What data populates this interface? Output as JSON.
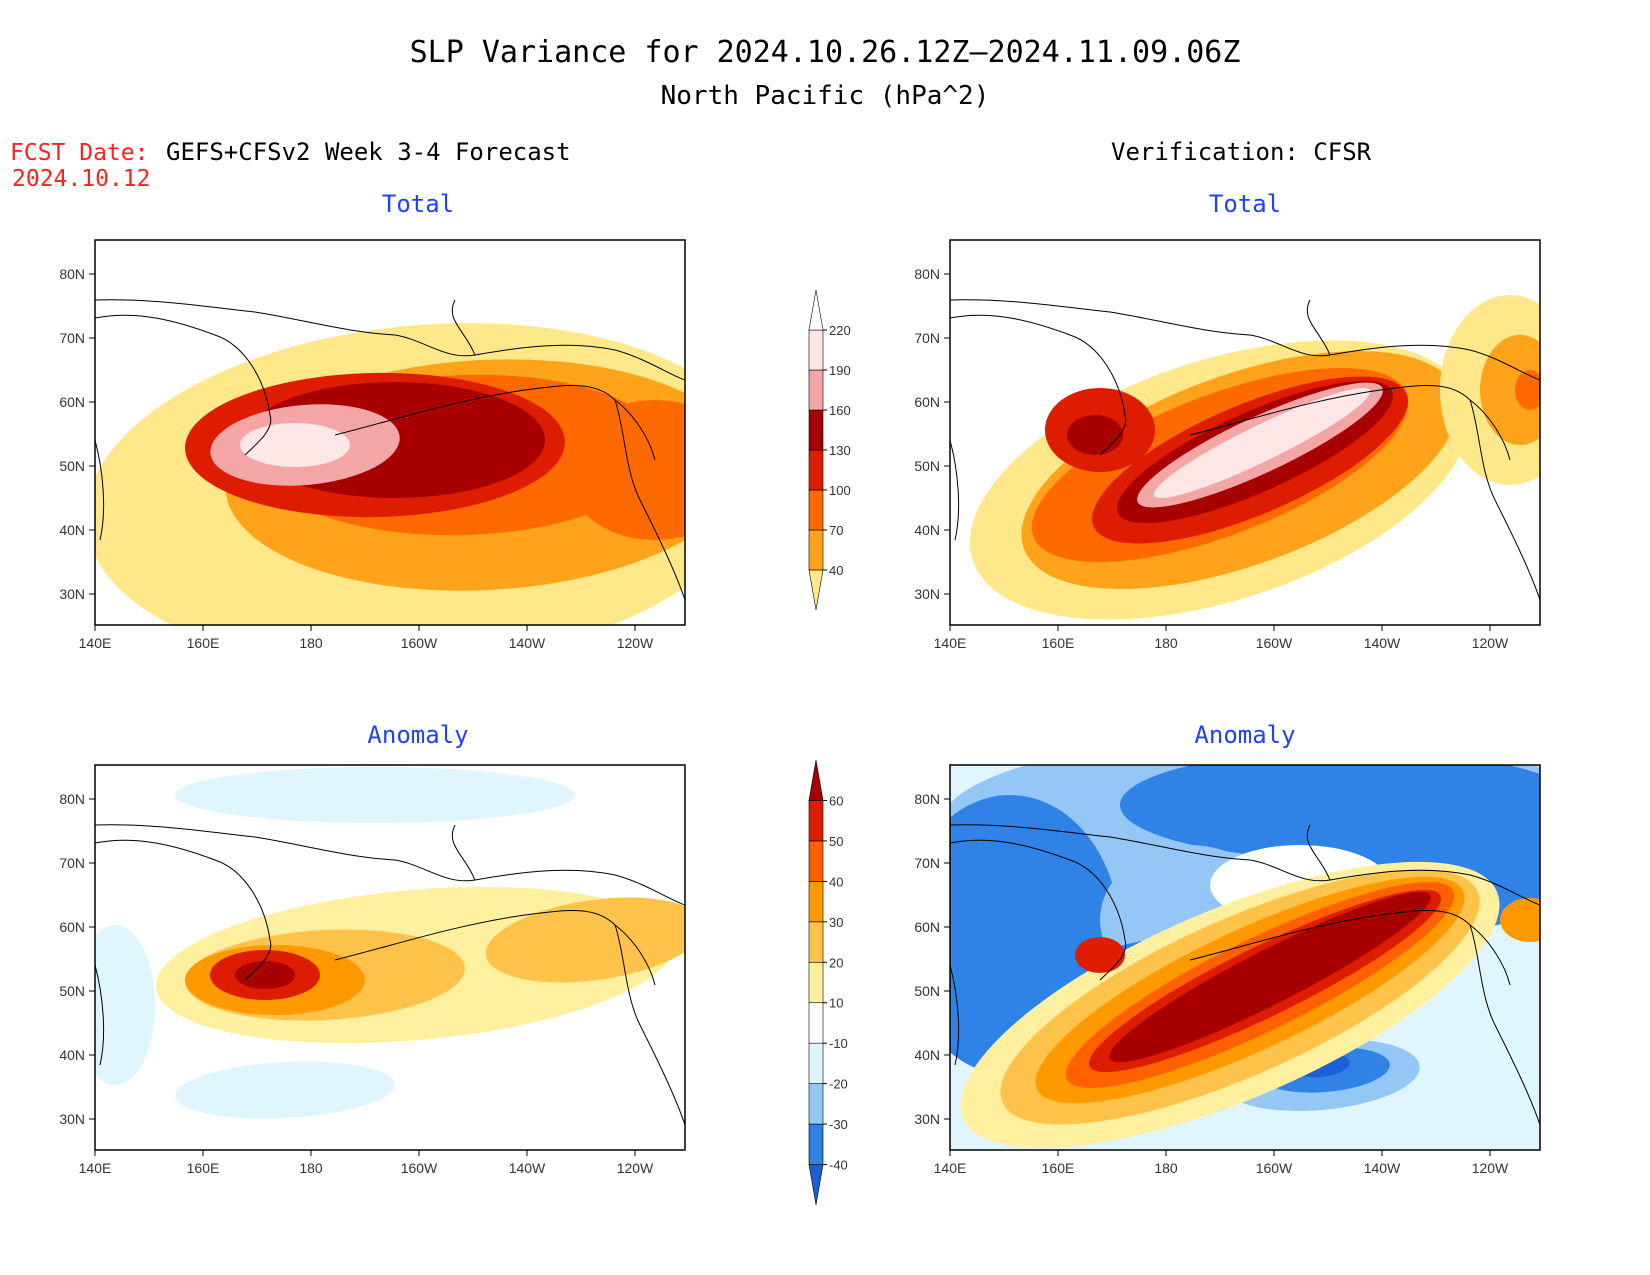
{
  "title": {
    "line1": "SLP Variance for 2024.10.26.12Z–2024.11.09.06Z",
    "line2": "North Pacific (hPa^2)"
  },
  "fcst": {
    "label": "FCST Date:",
    "date": "2024.10.12"
  },
  "columns": {
    "left": "GEFS+CFSv2 Week 3-4 Forecast",
    "right": "Verification: CFSR"
  },
  "panel_titles": {
    "total": "Total",
    "anomaly": "Anomaly"
  },
  "axes": {
    "lon_labels": [
      "140E",
      "160E",
      "180",
      "160W",
      "140W",
      "120W"
    ],
    "lat_labels": [
      "80N",
      "70N",
      "60N",
      "50N",
      "40N",
      "30N"
    ]
  },
  "colorbars": {
    "total": {
      "levels": [
        "40",
        "70",
        "100",
        "130",
        "160",
        "190",
        "220"
      ],
      "colors": [
        "#ffe88a",
        "#ffa31a",
        "#ff6a00",
        "#dd1c00",
        "#a80000",
        "#f4a6a6",
        "#fde6e6",
        "#ffffff"
      ]
    },
    "anomaly": {
      "levels": [
        "-40",
        "-30",
        "-20",
        "-10",
        "10",
        "20",
        "30",
        "40",
        "50",
        "60"
      ],
      "colors": [
        "#1c5ed6",
        "#2f82e6",
        "#94c7f5",
        "#dff5ff",
        "#ffffff",
        "#fff0a0",
        "#ffc24a",
        "#ff9900",
        "#ff6000",
        "#dd1c00",
        "#a80000"
      ]
    }
  },
  "colors": {
    "fcst_label": "#ff2020",
    "panel_title": "#2040ff",
    "text": "#000000"
  }
}
